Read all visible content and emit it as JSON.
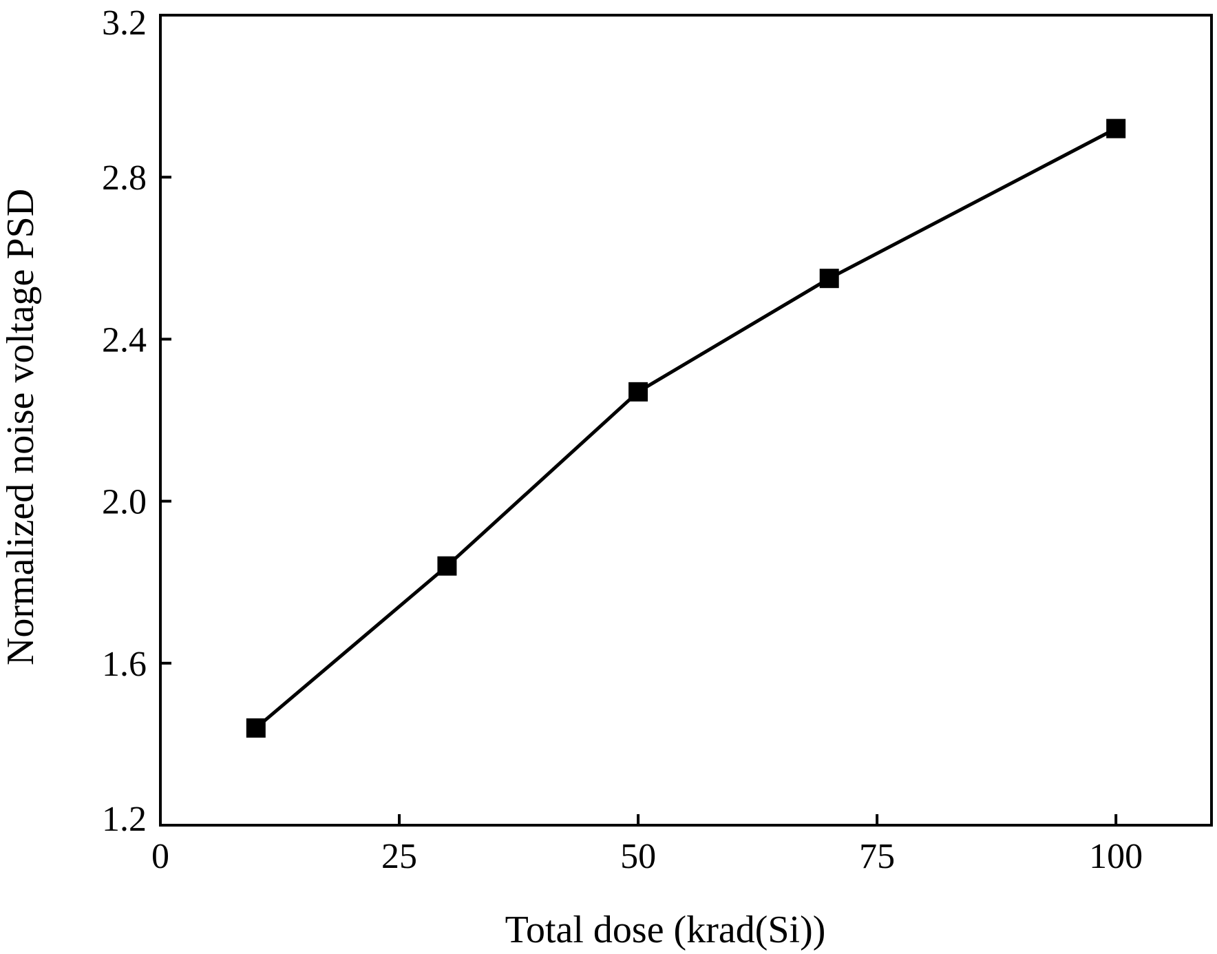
{
  "chart_data": {
    "type": "line",
    "title": "",
    "xlabel": "Total dose (krad(Si))",
    "ylabel": "Normalized noise voltage PSD",
    "xlim": [
      0,
      110
    ],
    "ylim": [
      1.2,
      3.2
    ],
    "xticks": [
      0,
      25,
      50,
      75,
      100
    ],
    "xtick_labels": [
      "0",
      "25",
      "50",
      "75",
      "100"
    ],
    "yticks": [
      1.2,
      1.6,
      2.0,
      2.4,
      2.8,
      3.2
    ],
    "ytick_labels": [
      "1.2",
      "1.6",
      "2.0",
      "2.4",
      "2.8",
      "3.2"
    ],
    "grid": false,
    "legend": "none",
    "series": [
      {
        "x": [
          10,
          30,
          50,
          70,
          100
        ],
        "y": [
          1.44,
          1.84,
          2.27,
          2.55,
          2.92
        ],
        "marker": "square",
        "color": "#000000"
      }
    ]
  }
}
